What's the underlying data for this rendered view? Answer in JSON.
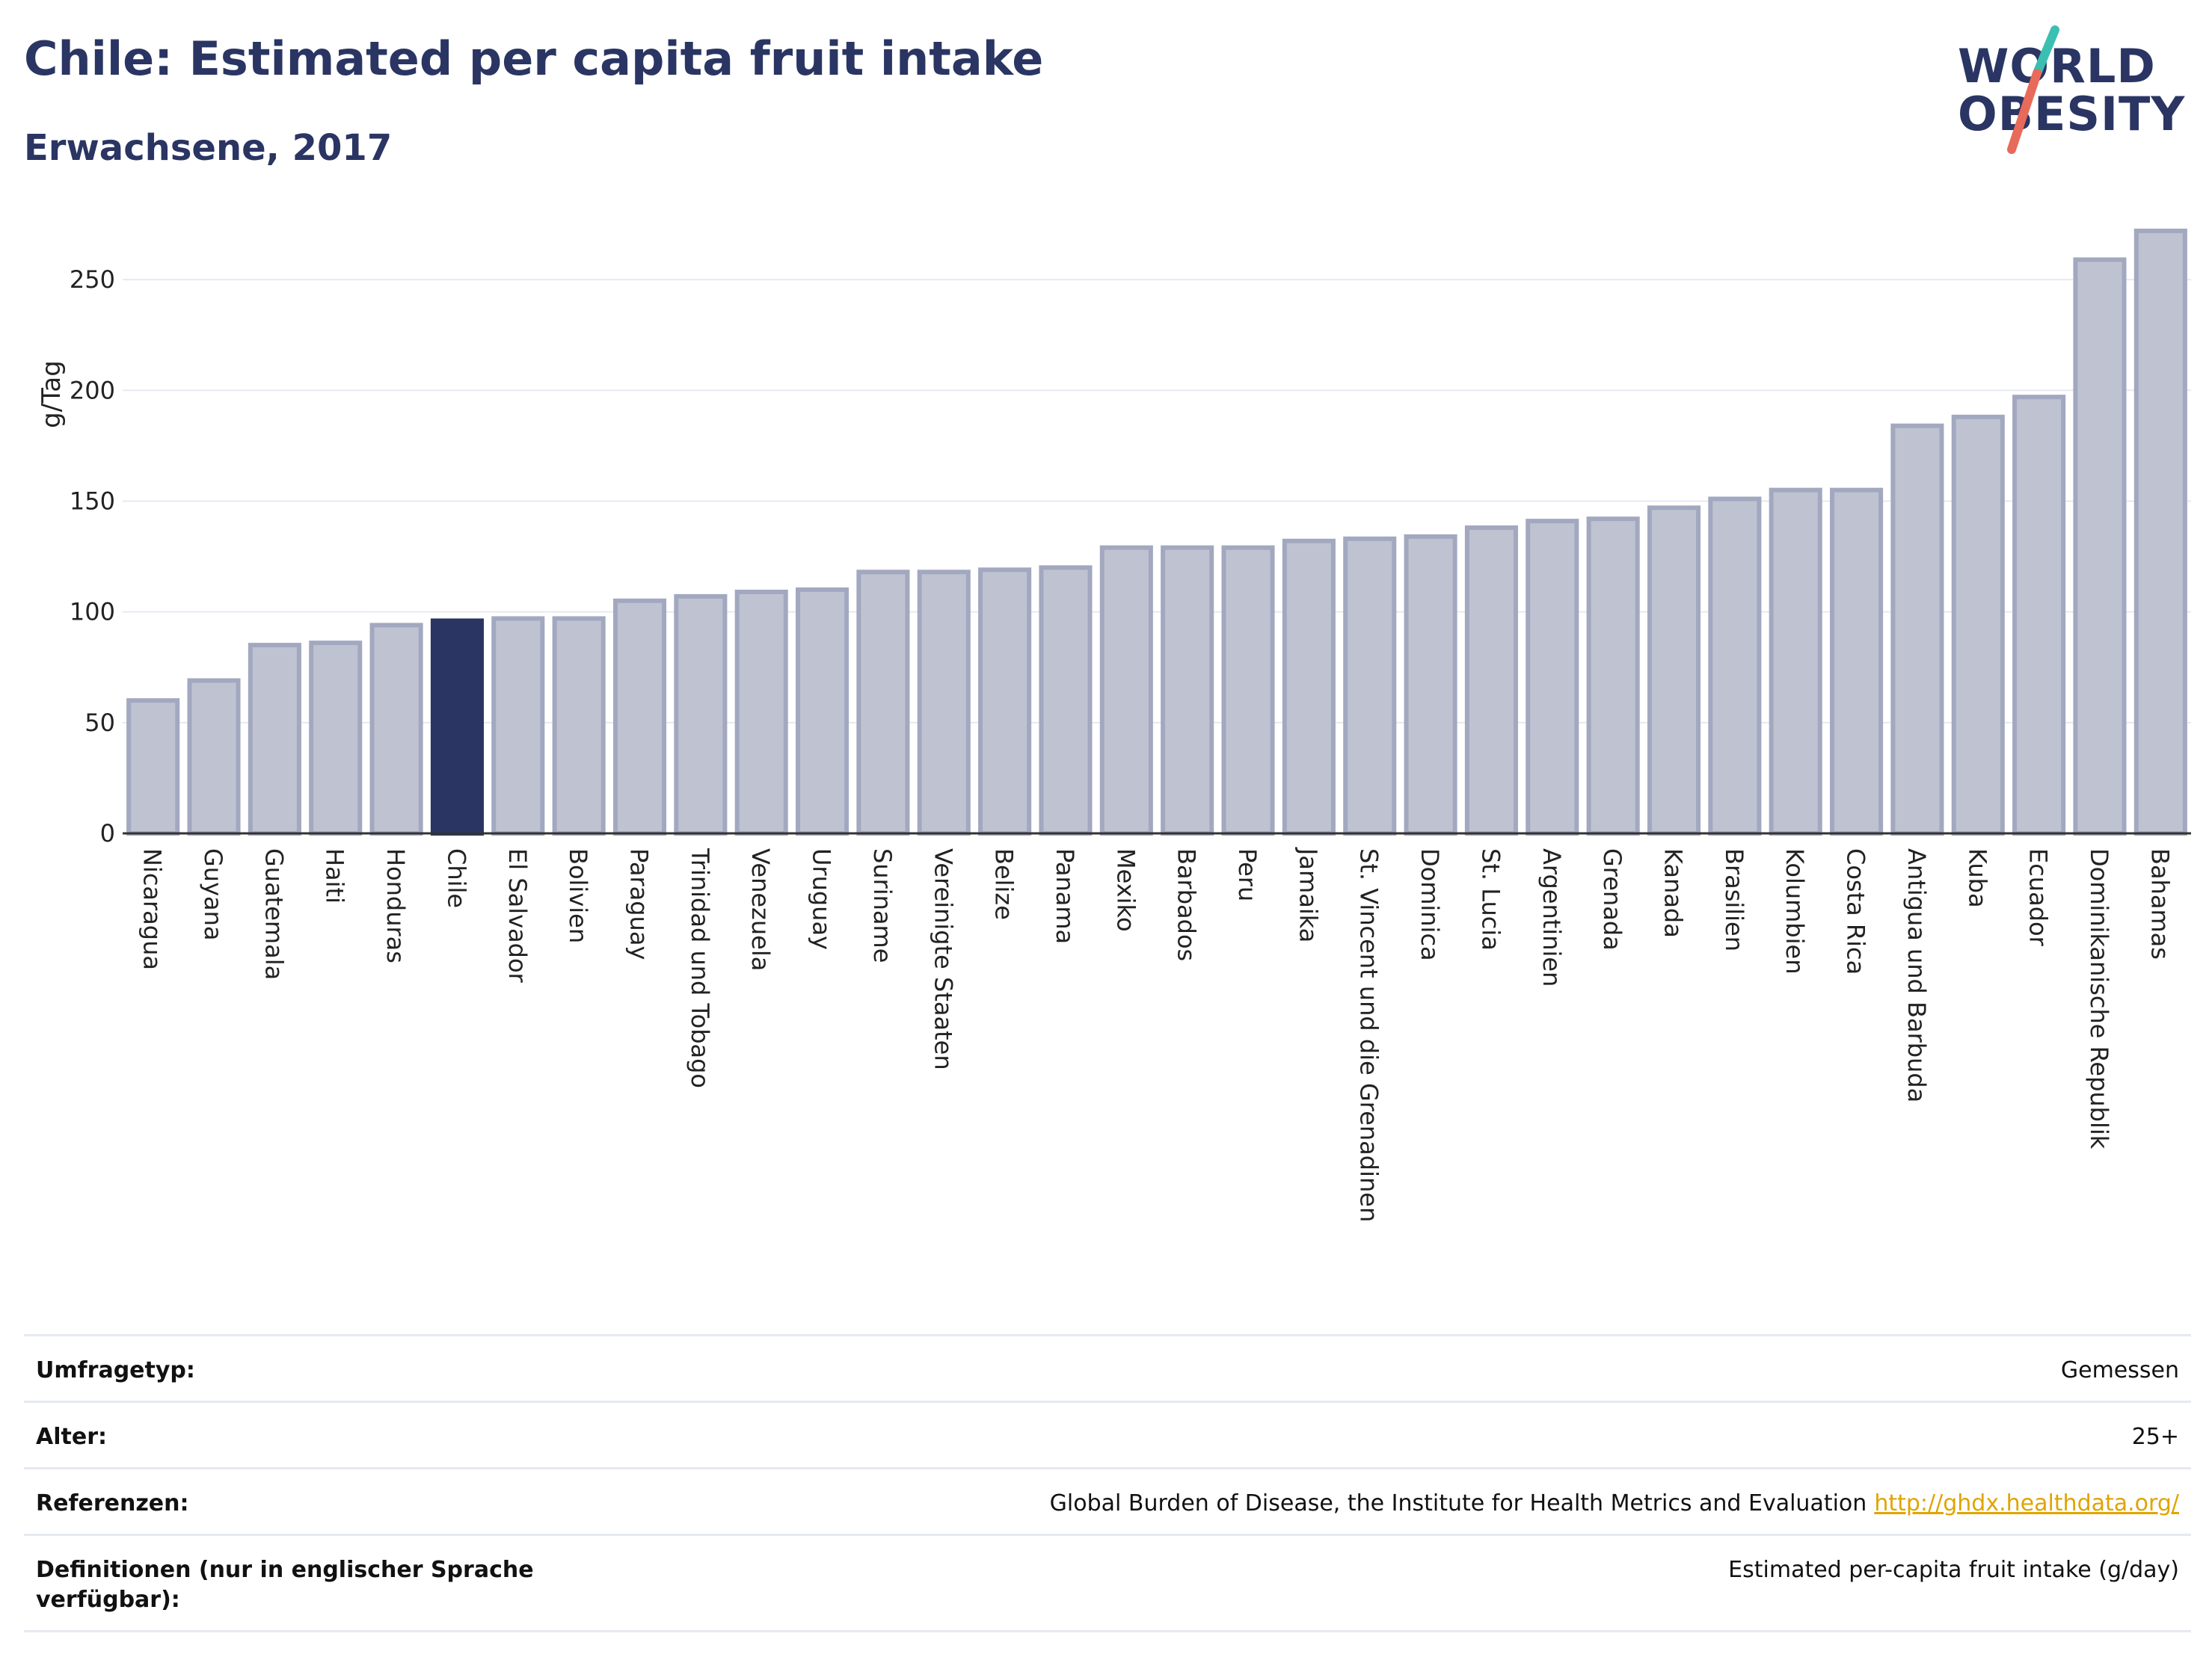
{
  "header": {
    "title": "Chile: Estimated per capita fruit intake",
    "subtitle": "Erwachsene, 2017"
  },
  "logo": {
    "line1": "WORLD",
    "line2": "OBESITY",
    "colors": {
      "text": "#2a3563",
      "slash_teal": "#3bbfb0",
      "slash_coral": "#e86a5a"
    }
  },
  "chart_data": {
    "type": "bar",
    "ylabel": "g/Tag",
    "ylim": [
      0,
      275
    ],
    "yticks": [
      0,
      50,
      100,
      150,
      200,
      250
    ],
    "grid": true,
    "highlight": "Chile",
    "colors": {
      "bar": "#bfc3d1",
      "bar_border": "#a2a8bf",
      "highlight": "#2a3563"
    },
    "categories": [
      "Nicaragua",
      "Guyana",
      "Guatemala",
      "Haiti",
      "Honduras",
      "Chile",
      "El Salvador",
      "Bolivien",
      "Paraguay",
      "Trinidad und Tobago",
      "Venezuela",
      "Uruguay",
      "Suriname",
      "Vereinigte Staaten",
      "Belize",
      "Panama",
      "Mexiko",
      "Barbados",
      "Peru",
      "Jamaika",
      "St. Vincent und die Grenadinen",
      "Dominica",
      "St. Lucia",
      "Argentinien",
      "Grenada",
      "Kanada",
      "Brasilien",
      "Kolumbien",
      "Costa Rica",
      "Antigua und Barbuda",
      "Kuba",
      "Ecuador",
      "Dominikanische Republik",
      "Bahamas"
    ],
    "values": [
      60,
      69,
      85,
      86,
      94,
      96,
      97,
      97,
      105,
      107,
      109,
      110,
      118,
      118,
      119,
      120,
      129,
      129,
      129,
      132,
      133,
      134,
      138,
      141,
      142,
      147,
      151,
      155,
      155,
      184,
      188,
      197,
      259,
      272
    ]
  },
  "info": [
    {
      "label": "Umfragetyp:",
      "value": "Gemessen"
    },
    {
      "label": "Alter:",
      "value": "25+"
    },
    {
      "label": "Referenzen:",
      "value": "Global Burden of Disease, the Institute for Health Metrics and Evaluation",
      "link": "http://ghdx.healthdata.org/"
    },
    {
      "label": "Definitionen (nur in englischer Sprache verfügbar):",
      "value": "Estimated per-capita fruit intake (g/day)"
    }
  ]
}
